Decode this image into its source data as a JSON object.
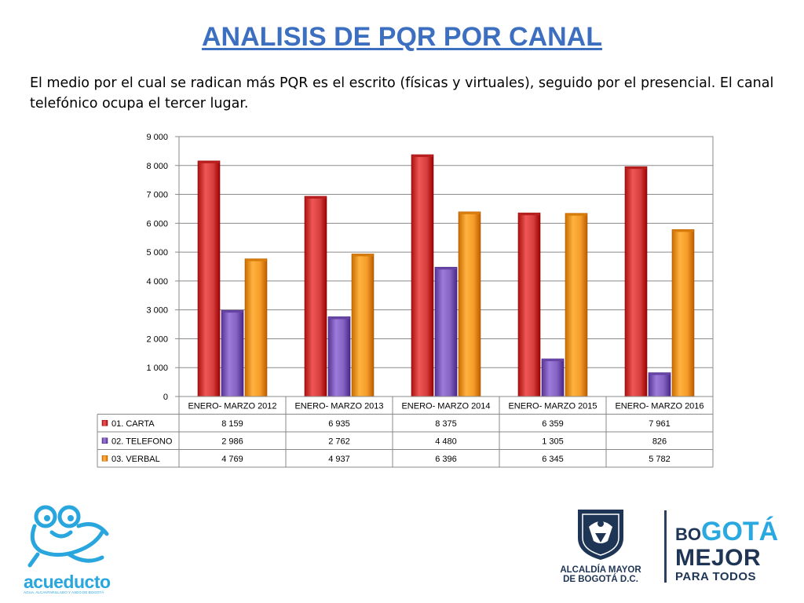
{
  "slide": {
    "title": "ANALISIS DE PQR POR CANAL",
    "subtitle": "El medio por el cual se radican más PQR es el escrito (físicas y virtuales), seguido por el presencial.  El canal telefónico ocupa el tercer lugar."
  },
  "chart_data": {
    "type": "bar",
    "categories": [
      "ENERO- MARZO 2012",
      "ENERO- MARZO 2013",
      "ENERO- MARZO 2014",
      "ENERO- MARZO 2015",
      "ENERO- MARZO 2016"
    ],
    "series": [
      {
        "name": "01. CARTA",
        "values": [
          8159,
          6935,
          8375,
          6359,
          7961
        ],
        "display": [
          "8 159",
          "6 935",
          "8 375",
          "6 359",
          "7 961"
        ],
        "color": "#d63e3e"
      },
      {
        "name": "02. TELEFONO",
        "values": [
          2986,
          2762,
          4480,
          1305,
          826
        ],
        "display": [
          "2 986",
          "2 762",
          "4 480",
          "1 305",
          "826"
        ],
        "color": "#8462c2"
      },
      {
        "name": "03. VERBAL",
        "values": [
          4769,
          4937,
          6396,
          6345,
          5782
        ],
        "display": [
          "4 769",
          "4 937",
          "6 396",
          "6 345",
          "5 782"
        ],
        "color": "#f59a28"
      }
    ],
    "ylim": [
      0,
      9000
    ],
    "yticks": [
      0,
      1000,
      2000,
      3000,
      4000,
      5000,
      6000,
      7000,
      8000,
      9000
    ],
    "ytick_labels": [
      "0",
      "1 000",
      "2 000",
      "3 000",
      "4 000",
      "5 000",
      "6 000",
      "7 000",
      "8 000",
      "9 000"
    ],
    "grid": true,
    "legend": "data-table-below"
  },
  "logos": {
    "acueducto_name": "acueducto",
    "acueducto_tagline": "AGUA, ALCANTARILLADO Y ASEO DE BOGOTÁ",
    "alcaldia_line1": "ALCALDÍA MAYOR",
    "alcaldia_line2": "DE BOGOTÁ D.C.",
    "bogota_line1_a": "BO",
    "bogota_line1_b": "GOTÁ",
    "bogota_line2": "MEJOR",
    "bogota_line3": "PARA TODOS"
  },
  "colors": {
    "title": "#3d6fc0",
    "acueducto_blue": "#29a6dd",
    "bogota_navy": "#1f3556",
    "bogota_cyan": "#2aa9e0"
  }
}
